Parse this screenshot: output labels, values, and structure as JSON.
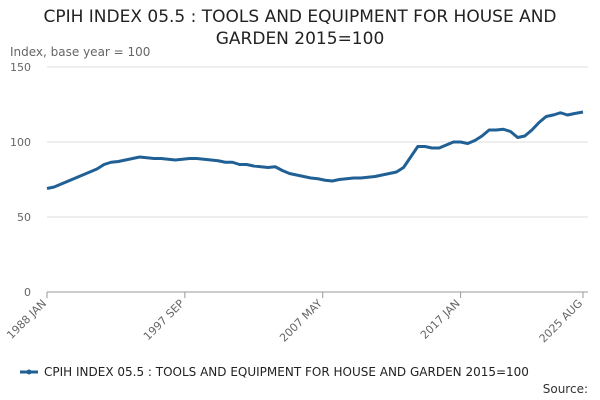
{
  "chart_data": {
    "type": "line",
    "title": "CPIH INDEX 05.5 : TOOLS AND EQUIPMENT FOR HOUSE AND GARDEN 2015=100",
    "y_label": "Index, base year = 100",
    "source": "Source:",
    "x": [
      "1988 JAN",
      "1988 JUL",
      "1989 JAN",
      "1989 JUL",
      "1990 JAN",
      "1990 JUL",
      "1991 JAN",
      "1991 JUL",
      "1992 JAN",
      "1992 JUL",
      "1993 JAN",
      "1993 JUL",
      "1994 JAN",
      "1994 JUL",
      "1995 JAN",
      "1995 JUL",
      "1996 JAN",
      "1996 JUL",
      "1997 JAN",
      "1997 JUL",
      "1998 JAN",
      "1998 JUL",
      "1999 JAN",
      "1999 JUL",
      "2000 JAN",
      "2000 JUL",
      "2001 JAN",
      "2001 JUL",
      "2002 JAN",
      "2002 JUL",
      "2003 JAN",
      "2003 JUL",
      "2004 JAN",
      "2004 JUL",
      "2005 JAN",
      "2005 JUL",
      "2006 JAN",
      "2006 JUL",
      "2007 JAN",
      "2007 JUL",
      "2008 JAN",
      "2008 JUL",
      "2009 JAN",
      "2009 JUL",
      "2010 JAN",
      "2010 JUL",
      "2011 JAN",
      "2011 JUL",
      "2012 JAN",
      "2012 JUL",
      "2013 JAN",
      "2013 JUL",
      "2014 JAN",
      "2014 JUL",
      "2015 JAN",
      "2015 JUL",
      "2016 JAN",
      "2016 JUL",
      "2017 JAN",
      "2017 JUL",
      "2018 JAN",
      "2018 JUL",
      "2019 JAN",
      "2019 JUL",
      "2020 JAN",
      "2020 JUL",
      "2021 JAN",
      "2021 JUL",
      "2022 JAN",
      "2022 JUL",
      "2023 JAN",
      "2023 JUL",
      "2024 JAN",
      "2024 JUL",
      "2025 JAN",
      "2025 AUG"
    ],
    "series": [
      {
        "name": "CPIH INDEX 05.5 : TOOLS AND EQUIPMENT FOR HOUSE AND GARDEN 2015=100",
        "color": "#206095",
        "values": [
          69,
          70,
          72,
          74,
          76,
          78,
          80,
          82,
          85,
          86.5,
          87,
          88,
          89,
          90,
          89.5,
          89,
          89,
          88.5,
          88,
          88.5,
          89,
          89,
          88.5,
          88,
          87.5,
          86.5,
          86.5,
          85,
          85,
          84,
          83.5,
          83,
          83.5,
          81,
          79,
          78,
          77,
          76,
          75.5,
          74.5,
          74,
          75,
          75.5,
          76,
          76,
          76.5,
          77,
          78,
          79,
          80,
          83,
          90,
          97,
          97,
          96,
          96,
          98,
          100,
          100,
          99,
          101,
          104,
          108,
          108,
          108.5,
          107,
          103,
          104,
          108,
          113,
          117,
          118,
          119.5,
          118,
          119,
          120
        ]
      }
    ],
    "xlim": [
      "1988 JAN",
      "2025 AUG"
    ],
    "xticks": [
      "1988 JAN",
      "1997 SEP",
      "2007 MAY",
      "2017 JAN",
      "2025 AUG"
    ],
    "ylim": [
      0,
      150
    ],
    "yticks": [
      0,
      50,
      100,
      150
    ],
    "grid": true
  }
}
